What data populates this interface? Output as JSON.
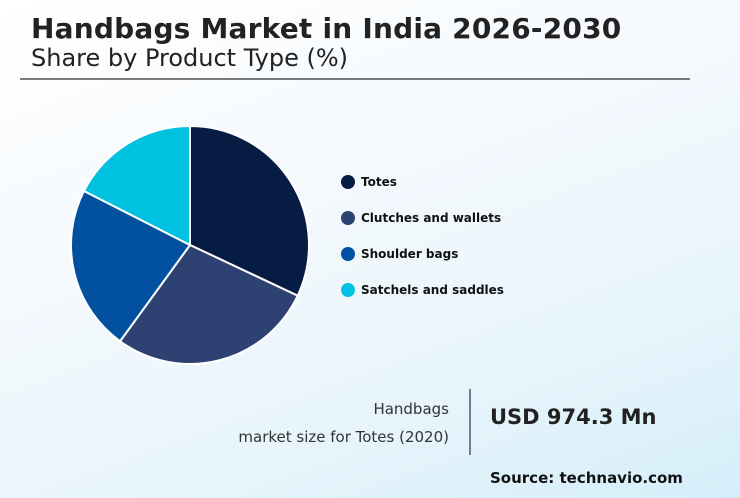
{
  "header": {
    "title": "Handbags Market in India 2026-2030",
    "subtitle": "Share by Product Type (%)"
  },
  "legend": {
    "items": [
      {
        "label": "Totes",
        "color": "#071c42"
      },
      {
        "label": "Clutches and wallets",
        "color": "#2d4172"
      },
      {
        "label": "Shoulder bags",
        "color": "#0251a0"
      },
      {
        "label": "Satchels and saddles",
        "color": "#00c1e0"
      }
    ]
  },
  "stat": {
    "label_line1": "Handbags",
    "label_line2": "market size for Totes (2020)",
    "value": "USD 974.3 Mn"
  },
  "footer": {
    "source": "Source: technavio.com"
  },
  "chart_data": {
    "type": "pie",
    "title": "Handbags Market in India 2026-2030",
    "subtitle": "Share by Product Type (%)",
    "categories": [
      "Totes",
      "Clutches and wallets",
      "Shoulder bags",
      "Satchels and saddles"
    ],
    "values": [
      32,
      28,
      22.5,
      17.5
    ],
    "colors": [
      "#071c42",
      "#2d4172",
      "#0251a0",
      "#00c1e0"
    ],
    "start_angle": "12 o'clock, clockwise",
    "legend_position": "right",
    "data_labels": false,
    "annotation": "Handbags market size for Totes (2020): USD 974.3 Mn"
  }
}
